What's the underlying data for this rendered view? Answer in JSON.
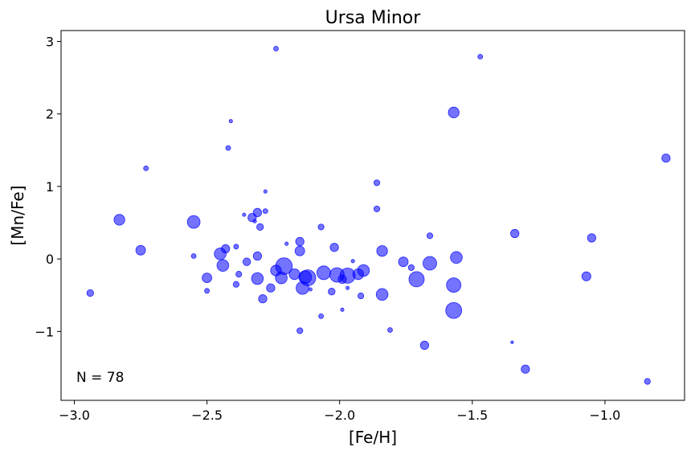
{
  "chart_data": {
    "type": "scatter",
    "title": "Ursa Minor",
    "xlabel": "[Fe/H]",
    "ylabel": "[Mn/Fe]",
    "xlim": [
      -3.05,
      -0.7
    ],
    "ylim": [
      -1.95,
      3.15
    ],
    "x_ticks": [
      -3.0,
      -2.5,
      -2.0,
      -1.5,
      -1.0
    ],
    "x_tick_labels": [
      "−3.0",
      "−2.5",
      "−2.0",
      "−1.5",
      "−1.0"
    ],
    "y_ticks": [
      -1,
      0,
      1,
      2,
      3
    ],
    "y_tick_labels": [
      "−1",
      "0",
      "1",
      "2",
      "3"
    ],
    "annotation": "N = 78",
    "marker_color": "#0000ff",
    "marker_alpha": 0.55,
    "grid": false,
    "legend": "none",
    "size_note": "marker area varies per point; relative sizes given",
    "points": [
      {
        "x": -2.94,
        "y": -0.47,
        "s": 2
      },
      {
        "x": -2.83,
        "y": 0.54,
        "s": 5
      },
      {
        "x": -2.75,
        "y": 0.12,
        "s": 4
      },
      {
        "x": -2.73,
        "y": 1.25,
        "s": 1
      },
      {
        "x": -2.55,
        "y": 0.51,
        "s": 7
      },
      {
        "x": -2.55,
        "y": 0.04,
        "s": 1
      },
      {
        "x": -2.5,
        "y": -0.26,
        "s": 4
      },
      {
        "x": -2.5,
        "y": -0.44,
        "s": 1
      },
      {
        "x": -2.45,
        "y": 0.07,
        "s": 6
      },
      {
        "x": -2.44,
        "y": -0.09,
        "s": 6
      },
      {
        "x": -2.43,
        "y": 0.14,
        "s": 3
      },
      {
        "x": -2.42,
        "y": 1.53,
        "s": 1
      },
      {
        "x": -2.41,
        "y": 1.9,
        "s": 0.5
      },
      {
        "x": -2.39,
        "y": 0.17,
        "s": 1
      },
      {
        "x": -2.39,
        "y": -0.35,
        "s": 1.5
      },
      {
        "x": -2.38,
        "y": -0.21,
        "s": 1.5
      },
      {
        "x": -2.36,
        "y": 0.61,
        "s": 0.5
      },
      {
        "x": -2.35,
        "y": -0.04,
        "s": 2.5
      },
      {
        "x": -2.33,
        "y": 0.57,
        "s": 3
      },
      {
        "x": -2.32,
        "y": 0.52,
        "s": 0.5
      },
      {
        "x": -2.31,
        "y": 0.64,
        "s": 3
      },
      {
        "x": -2.31,
        "y": 0.04,
        "s": 3
      },
      {
        "x": -2.31,
        "y": -0.27,
        "s": 6
      },
      {
        "x": -2.3,
        "y": 0.44,
        "s": 2
      },
      {
        "x": -2.29,
        "y": -0.55,
        "s": 3
      },
      {
        "x": -2.28,
        "y": 0.93,
        "s": 0.5
      },
      {
        "x": -2.28,
        "y": 0.66,
        "s": 1
      },
      {
        "x": -2.26,
        "y": -0.4,
        "s": 3
      },
      {
        "x": -2.24,
        "y": -0.16,
        "s": 5
      },
      {
        "x": -2.24,
        "y": 2.9,
        "s": 1
      },
      {
        "x": -2.22,
        "y": -0.26,
        "s": 6
      },
      {
        "x": -2.21,
        "y": -0.1,
        "s": 12
      },
      {
        "x": -2.2,
        "y": 0.21,
        "s": 0.5
      },
      {
        "x": -2.17,
        "y": -0.21,
        "s": 5
      },
      {
        "x": -2.15,
        "y": 0.24,
        "s": 3
      },
      {
        "x": -2.15,
        "y": 0.11,
        "s": 4
      },
      {
        "x": -2.15,
        "y": -0.99,
        "s": 1.5
      },
      {
        "x": -2.14,
        "y": -0.4,
        "s": 7
      },
      {
        "x": -2.13,
        "y": -0.25,
        "s": 7
      },
      {
        "x": -2.12,
        "y": -0.26,
        "s": 11
      },
      {
        "x": -2.11,
        "y": -0.42,
        "s": 0.5
      },
      {
        "x": -2.07,
        "y": 0.44,
        "s": 1.5
      },
      {
        "x": -2.07,
        "y": -0.79,
        "s": 1
      },
      {
        "x": -2.06,
        "y": -0.19,
        "s": 8
      },
      {
        "x": -2.03,
        "y": -0.45,
        "s": 2
      },
      {
        "x": -2.02,
        "y": 0.16,
        "s": 3
      },
      {
        "x": -2.01,
        "y": -0.22,
        "s": 9
      },
      {
        "x": -1.99,
        "y": -0.28,
        "s": 3
      },
      {
        "x": -1.99,
        "y": -0.7,
        "s": 0.5
      },
      {
        "x": -1.97,
        "y": -0.23,
        "s": 10
      },
      {
        "x": -1.97,
        "y": -0.4,
        "s": 0.5
      },
      {
        "x": -1.95,
        "y": -0.03,
        "s": 0.5
      },
      {
        "x": -1.93,
        "y": -0.21,
        "s": 5
      },
      {
        "x": -1.92,
        "y": -0.51,
        "s": 1.5
      },
      {
        "x": -1.91,
        "y": -0.16,
        "s": 6
      },
      {
        "x": -1.86,
        "y": 1.05,
        "s": 1.5
      },
      {
        "x": -1.86,
        "y": 0.69,
        "s": 1.5
      },
      {
        "x": -1.84,
        "y": 0.11,
        "s": 5
      },
      {
        "x": -1.84,
        "y": -0.49,
        "s": 6
      },
      {
        "x": -1.81,
        "y": -0.98,
        "s": 1
      },
      {
        "x": -1.76,
        "y": -0.04,
        "s": 4
      },
      {
        "x": -1.73,
        "y": -0.12,
        "s": 1.5
      },
      {
        "x": -1.71,
        "y": -0.28,
        "s": 10
      },
      {
        "x": -1.68,
        "y": -1.19,
        "s": 3
      },
      {
        "x": -1.66,
        "y": -0.06,
        "s": 8
      },
      {
        "x": -1.66,
        "y": 0.32,
        "s": 1.5
      },
      {
        "x": -1.57,
        "y": 2.02,
        "s": 5
      },
      {
        "x": -1.57,
        "y": -0.36,
        "s": 9
      },
      {
        "x": -1.57,
        "y": -0.71,
        "s": 11
      },
      {
        "x": -1.56,
        "y": 0.02,
        "s": 6
      },
      {
        "x": -1.47,
        "y": 2.79,
        "s": 1
      },
      {
        "x": -1.35,
        "y": -1.15,
        "s": 0.3
      },
      {
        "x": -1.34,
        "y": 0.35,
        "s": 3
      },
      {
        "x": -1.3,
        "y": -1.52,
        "s": 3
      },
      {
        "x": -1.07,
        "y": -0.24,
        "s": 3.5
      },
      {
        "x": -1.05,
        "y": 0.29,
        "s": 3
      },
      {
        "x": -0.84,
        "y": -1.69,
        "s": 1.5
      },
      {
        "x": -0.77,
        "y": 1.39,
        "s": 3
      }
    ]
  }
}
